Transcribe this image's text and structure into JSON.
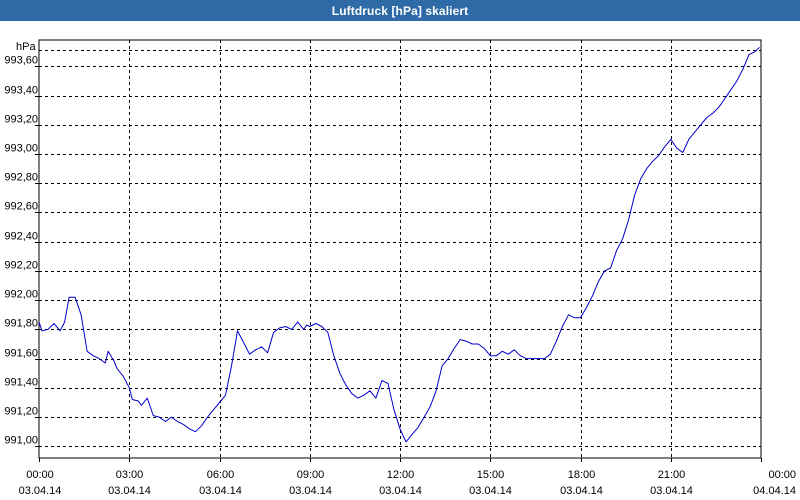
{
  "window": {
    "title": "Luftdruck [hPa] skaliert"
  },
  "colors": {
    "title_bar": "#2e6aa5",
    "title_text": "#ffffff",
    "line": "#0000cc",
    "grid": "#000000",
    "plot_background": "#ffffff"
  },
  "chart_data": {
    "type": "line",
    "title": "Luftdruck [hPa] skaliert",
    "ylabel": "hPa",
    "xlabel": "",
    "grid": true,
    "grid_style": "dashed",
    "ylim": [
      990.92,
      993.78
    ],
    "yticks": [
      991.0,
      991.2,
      991.4,
      991.6,
      991.8,
      992.0,
      992.2,
      992.4,
      992.6,
      992.8,
      993.0,
      993.2,
      993.4,
      993.6
    ],
    "ytick_labels": [
      "991,00",
      "991,20",
      "991,40",
      "991,60",
      "991,80",
      "992,00",
      "992,20",
      "992,40",
      "992,60",
      "992,80",
      "993,00",
      "993,20",
      "993,40",
      "993,60"
    ],
    "xlim": [
      0,
      24
    ],
    "xticks": [
      0,
      3,
      6,
      9,
      12,
      15,
      18,
      21,
      24
    ],
    "xtick_labels": [
      [
        "00:00",
        "03.04.14"
      ],
      [
        "03:00",
        "03.04.14"
      ],
      [
        "06:00",
        "03.04.14"
      ],
      [
        "09:00",
        "03.04.14"
      ],
      [
        "12:00",
        "03.04.14"
      ],
      [
        "15:00",
        "03.04.14"
      ],
      [
        "18:00",
        "03.04.14"
      ],
      [
        "21:00",
        "03.04.14"
      ],
      [
        "00:00",
        "04.04.14"
      ]
    ],
    "series": [
      {
        "x": [
          0.0,
          0.1,
          0.3,
          0.5,
          0.7,
          0.85,
          1.0,
          1.2,
          1.4,
          1.6,
          1.8,
          2.0,
          2.2,
          2.3,
          2.5,
          2.6,
          2.8,
          3.0,
          3.1,
          3.3,
          3.4,
          3.6,
          3.8,
          4.0,
          4.2,
          4.4,
          4.6,
          4.8,
          5.0,
          5.2,
          5.4,
          5.6,
          5.8,
          6.0,
          6.2,
          6.4,
          6.6,
          6.8,
          7.0,
          7.2,
          7.4,
          7.6,
          7.8,
          8.0,
          8.2,
          8.4,
          8.6,
          8.8,
          8.9,
          9.0,
          9.2,
          9.4,
          9.6,
          9.8,
          10.0,
          10.2,
          10.4,
          10.6,
          10.8,
          11.0,
          11.2,
          11.4,
          11.6,
          11.8,
          12.0,
          12.2,
          12.4,
          12.6,
          12.8,
          13.0,
          13.2,
          13.4,
          13.6,
          13.8,
          14.0,
          14.2,
          14.4,
          14.6,
          14.8,
          15.0,
          15.2,
          15.4,
          15.6,
          15.8,
          16.0,
          16.2,
          16.4,
          16.6,
          16.8,
          17.0,
          17.2,
          17.4,
          17.6,
          17.8,
          18.0,
          18.2,
          18.4,
          18.6,
          18.8,
          19.0,
          19.2,
          19.4,
          19.6,
          19.8,
          20.0,
          20.2,
          20.4,
          20.6,
          20.8,
          21.0,
          21.2,
          21.4,
          21.6,
          21.8,
          22.0,
          22.2,
          22.4,
          22.6,
          22.8,
          23.0,
          23.2,
          23.4,
          23.6,
          23.8,
          23.95
        ],
        "y": [
          991.85,
          991.79,
          991.8,
          991.84,
          991.79,
          991.85,
          992.02,
          992.02,
          991.9,
          991.65,
          991.62,
          991.6,
          991.57,
          991.65,
          991.58,
          991.53,
          991.48,
          991.4,
          991.32,
          991.31,
          991.28,
          991.33,
          991.21,
          991.2,
          991.17,
          991.2,
          991.17,
          991.15,
          991.12,
          991.1,
          991.14,
          991.2,
          991.25,
          991.3,
          991.35,
          991.55,
          991.79,
          991.71,
          991.63,
          991.66,
          991.68,
          991.64,
          991.78,
          991.81,
          991.82,
          991.8,
          991.85,
          991.8,
          991.83,
          991.82,
          991.84,
          991.82,
          991.78,
          991.62,
          991.5,
          991.42,
          991.36,
          991.33,
          991.35,
          991.38,
          991.33,
          991.45,
          991.43,
          991.25,
          991.12,
          991.03,
          991.08,
          991.13,
          991.2,
          991.27,
          991.38,
          991.55,
          991.6,
          991.67,
          991.73,
          991.72,
          991.7,
          991.7,
          991.67,
          991.62,
          991.62,
          991.65,
          991.63,
          991.66,
          991.62,
          991.6,
          991.6,
          991.6,
          991.6,
          991.63,
          991.72,
          991.82,
          991.9,
          991.88,
          991.88,
          991.95,
          992.03,
          992.13,
          992.2,
          992.22,
          992.34,
          992.42,
          992.55,
          992.72,
          992.83,
          992.9,
          992.95,
          992.99,
          993.05,
          993.1,
          993.04,
          993.01,
          993.1,
          993.15,
          993.2,
          993.25,
          993.28,
          993.32,
          993.38,
          993.44,
          993.5,
          993.58,
          993.68,
          993.7,
          993.73
        ]
      }
    ]
  }
}
